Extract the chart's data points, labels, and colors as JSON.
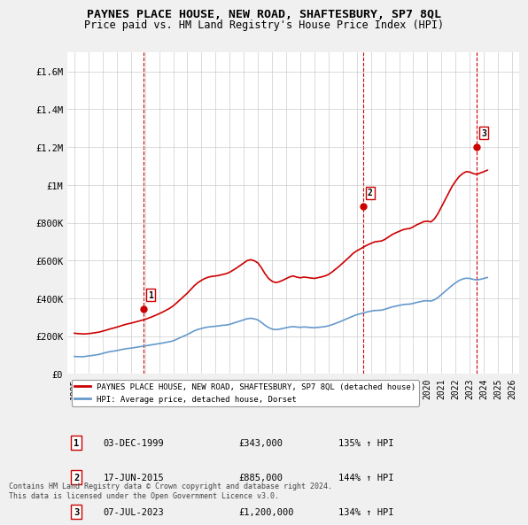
{
  "title": "PAYNES PLACE HOUSE, NEW ROAD, SHAFTESBURY, SP7 8QL",
  "subtitle": "Price paid vs. HM Land Registry's House Price Index (HPI)",
  "xlim": [
    1994.5,
    2026.5
  ],
  "ylim": [
    0,
    1700000
  ],
  "yticks": [
    0,
    200000,
    400000,
    600000,
    800000,
    1000000,
    1200000,
    1400000,
    1600000
  ],
  "ytick_labels": [
    "£0",
    "£200K",
    "£400K",
    "£600K",
    "£800K",
    "£1M",
    "£1.2M",
    "£1.4M",
    "£1.6M"
  ],
  "xticks": [
    1995,
    1996,
    1997,
    1998,
    1999,
    2000,
    2001,
    2002,
    2003,
    2004,
    2005,
    2006,
    2007,
    2008,
    2009,
    2010,
    2011,
    2012,
    2013,
    2014,
    2015,
    2016,
    2017,
    2018,
    2019,
    2020,
    2021,
    2022,
    2023,
    2024,
    2025,
    2026
  ],
  "sale_points": [
    {
      "year": 1999.92,
      "price": 343000,
      "label": "1"
    },
    {
      "year": 2015.46,
      "price": 885000,
      "label": "2"
    },
    {
      "year": 2023.51,
      "price": 1200000,
      "label": "3"
    }
  ],
  "vlines": [
    1999.92,
    2015.46,
    2023.51
  ],
  "house_color": "#cc0000",
  "hpi_color": "#6699cc",
  "legend_label_house": "PAYNES PLACE HOUSE, NEW ROAD, SHAFTESBURY, SP7 8QL (detached house)",
  "legend_label_hpi": "HPI: Average price, detached house, Dorset",
  "table_rows": [
    {
      "num": "1",
      "date": "03-DEC-1999",
      "price": "£343,000",
      "hpi": "135% ↑ HPI"
    },
    {
      "num": "2",
      "date": "17-JUN-2015",
      "price": "£885,000",
      "hpi": "144% ↑ HPI"
    },
    {
      "num": "3",
      "date": "07-JUL-2023",
      "price": "£1,200,000",
      "hpi": "134% ↑ HPI"
    }
  ],
  "footnote": "Contains HM Land Registry data © Crown copyright and database right 2024.\nThis data is licensed under the Open Government Licence v3.0.",
  "bg_color": "#f0f0f0",
  "plot_bg_color": "#ffffff",
  "hpi_data_x": [
    1995.0,
    1995.25,
    1995.5,
    1995.75,
    1996.0,
    1996.25,
    1996.5,
    1996.75,
    1997.0,
    1997.25,
    1997.5,
    1997.75,
    1998.0,
    1998.25,
    1998.5,
    1998.75,
    1999.0,
    1999.25,
    1999.5,
    1999.75,
    2000.0,
    2000.25,
    2000.5,
    2000.75,
    2001.0,
    2001.25,
    2001.5,
    2001.75,
    2002.0,
    2002.25,
    2002.5,
    2002.75,
    2003.0,
    2003.25,
    2003.5,
    2003.75,
    2004.0,
    2004.25,
    2004.5,
    2004.75,
    2005.0,
    2005.25,
    2005.5,
    2005.75,
    2006.0,
    2006.25,
    2006.5,
    2006.75,
    2007.0,
    2007.25,
    2007.5,
    2007.75,
    2008.0,
    2008.25,
    2008.5,
    2008.75,
    2009.0,
    2009.25,
    2009.5,
    2009.75,
    2010.0,
    2010.25,
    2010.5,
    2010.75,
    2011.0,
    2011.25,
    2011.5,
    2011.75,
    2012.0,
    2012.25,
    2012.5,
    2012.75,
    2013.0,
    2013.25,
    2013.5,
    2013.75,
    2014.0,
    2014.25,
    2014.5,
    2014.75,
    2015.0,
    2015.25,
    2015.5,
    2015.75,
    2016.0,
    2016.25,
    2016.5,
    2016.75,
    2017.0,
    2017.25,
    2017.5,
    2017.75,
    2018.0,
    2018.25,
    2018.5,
    2018.75,
    2019.0,
    2019.25,
    2019.5,
    2019.75,
    2020.0,
    2020.25,
    2020.5,
    2020.75,
    2021.0,
    2021.25,
    2021.5,
    2021.75,
    2022.0,
    2022.25,
    2022.5,
    2022.75,
    2023.0,
    2023.25,
    2023.5,
    2023.75,
    2024.0,
    2024.25
  ],
  "hpi_data_y": [
    92000,
    91000,
    90500,
    92000,
    95000,
    97000,
    100000,
    103000,
    108000,
    113000,
    117000,
    120000,
    123000,
    127000,
    131000,
    134000,
    136000,
    139000,
    142000,
    145000,
    148000,
    151000,
    154000,
    157000,
    160000,
    163000,
    167000,
    170000,
    175000,
    183000,
    192000,
    200000,
    208000,
    218000,
    228000,
    235000,
    240000,
    245000,
    248000,
    250000,
    252000,
    254000,
    257000,
    258000,
    262000,
    268000,
    274000,
    280000,
    286000,
    292000,
    294000,
    291000,
    285000,
    272000,
    257000,
    245000,
    237000,
    234000,
    236000,
    240000,
    244000,
    248000,
    250000,
    248000,
    246000,
    248000,
    247000,
    245000,
    244000,
    246000,
    248000,
    250000,
    254000,
    260000,
    267000,
    274000,
    282000,
    290000,
    298000,
    306000,
    313000,
    318000,
    323000,
    328000,
    332000,
    335000,
    336000,
    337000,
    342000,
    348000,
    354000,
    358000,
    362000,
    366000,
    368000,
    369000,
    373000,
    378000,
    382000,
    386000,
    387000,
    385000,
    392000,
    404000,
    420000,
    436000,
    452000,
    468000,
    482000,
    494000,
    502000,
    506000,
    505000,
    500000,
    497000,
    500000,
    505000,
    510000
  ],
  "house_data_x": [
    1995.0,
    1995.25,
    1995.5,
    1995.75,
    1996.0,
    1996.25,
    1996.5,
    1996.75,
    1997.0,
    1997.25,
    1997.5,
    1997.75,
    1998.0,
    1998.25,
    1998.5,
    1998.75,
    1999.0,
    1999.25,
    1999.5,
    1999.75,
    2000.0,
    2000.25,
    2000.5,
    2000.75,
    2001.0,
    2001.25,
    2001.5,
    2001.75,
    2002.0,
    2002.25,
    2002.5,
    2002.75,
    2003.0,
    2003.25,
    2003.5,
    2003.75,
    2004.0,
    2004.25,
    2004.5,
    2004.75,
    2005.0,
    2005.25,
    2005.5,
    2005.75,
    2006.0,
    2006.25,
    2006.5,
    2006.75,
    2007.0,
    2007.25,
    2007.5,
    2007.75,
    2008.0,
    2008.25,
    2008.5,
    2008.75,
    2009.0,
    2009.25,
    2009.5,
    2009.75,
    2010.0,
    2010.25,
    2010.5,
    2010.75,
    2011.0,
    2011.25,
    2011.5,
    2011.75,
    2012.0,
    2012.25,
    2012.5,
    2012.75,
    2013.0,
    2013.25,
    2013.5,
    2013.75,
    2014.0,
    2014.25,
    2014.5,
    2014.75,
    2015.0,
    2015.25,
    2015.5,
    2015.75,
    2016.0,
    2016.25,
    2016.5,
    2016.75,
    2017.0,
    2017.25,
    2017.5,
    2017.75,
    2018.0,
    2018.25,
    2018.5,
    2018.75,
    2019.0,
    2019.25,
    2019.5,
    2019.75,
    2020.0,
    2020.25,
    2020.5,
    2020.75,
    2021.0,
    2021.25,
    2021.5,
    2021.75,
    2022.0,
    2022.25,
    2022.5,
    2022.75,
    2023.0,
    2023.25,
    2023.5,
    2023.75,
    2024.0,
    2024.25
  ],
  "house_data_y": [
    215000,
    213000,
    212000,
    211000,
    213000,
    215000,
    218000,
    221000,
    226000,
    231000,
    237000,
    242000,
    247000,
    253000,
    259000,
    264000,
    268000,
    273000,
    278000,
    283000,
    288000,
    295000,
    302000,
    310000,
    318000,
    327000,
    337000,
    347000,
    360000,
    376000,
    393000,
    410000,
    427000,
    447000,
    467000,
    483000,
    495000,
    505000,
    512000,
    516000,
    518000,
    521000,
    526000,
    530000,
    538000,
    549000,
    561000,
    574000,
    587000,
    600000,
    604000,
    598000,
    587000,
    561000,
    530000,
    505000,
    490000,
    483000,
    487000,
    495000,
    504000,
    513000,
    518000,
    512000,
    508000,
    512000,
    510000,
    507000,
    505000,
    509000,
    513000,
    518000,
    526000,
    539000,
    554000,
    569000,
    586000,
    603000,
    620000,
    638000,
    651000,
    661000,
    672000,
    682000,
    690000,
    698000,
    701000,
    703000,
    712000,
    724000,
    737000,
    746000,
    754000,
    762000,
    767000,
    769000,
    778000,
    789000,
    797000,
    806000,
    808000,
    804000,
    820000,
    848000,
    884000,
    920000,
    956000,
    992000,
    1020000,
    1044000,
    1060000,
    1070000,
    1068000,
    1060000,
    1056000,
    1063000,
    1070000,
    1078000
  ]
}
